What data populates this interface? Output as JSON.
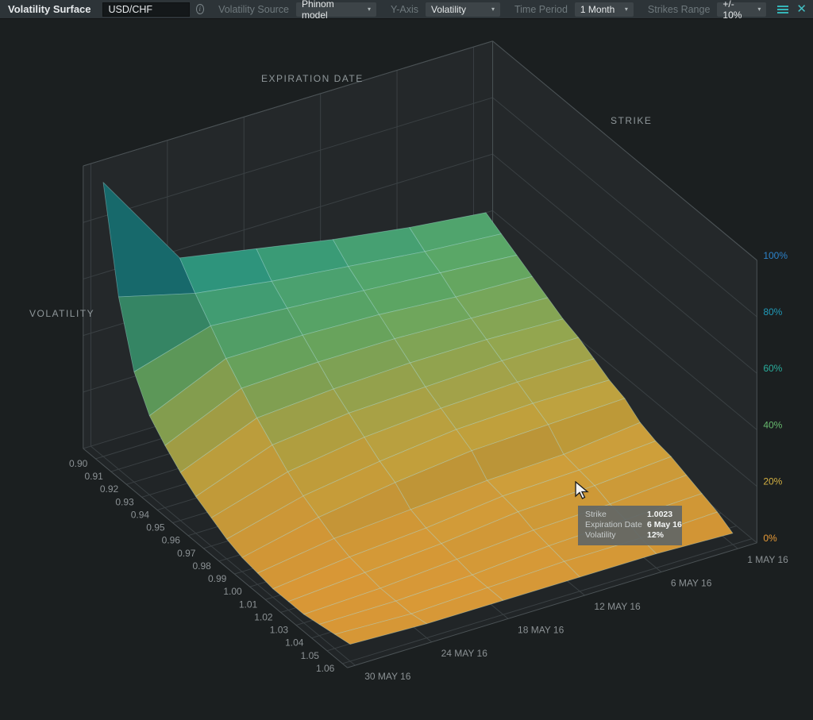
{
  "toolbar": {
    "title": "Volatility Surface",
    "pair_value": "USD/CHF",
    "info_glyph": "i",
    "caret_glyph": "▾",
    "close_glyph": "✕",
    "accent_teal": "#35b5b8",
    "fields": [
      {
        "label": "Volatility Source",
        "value": "Phinom model"
      },
      {
        "label": "Y-Axis",
        "value": "Volatility"
      },
      {
        "label": "Time Period",
        "value": "1 Month"
      },
      {
        "label": "Strikes Range",
        "value": "+/- 10%"
      }
    ]
  },
  "axes": {
    "expiration_title": "EXPIRATION DATE",
    "volatility_title": "VOLATILITY",
    "strike_title": "STRIKE"
  },
  "tooltip": {
    "rows": [
      {
        "label": "Strike",
        "value": "1.0023"
      },
      {
        "label": "Expiration Date",
        "value": "6 May 16"
      },
      {
        "label": "Volatility",
        "value": "12%"
      }
    ]
  },
  "chart_data": {
    "type": "surface",
    "title": "USD/CHF volatility surface",
    "x_axis": {
      "label": "EXPIRATION DATE",
      "tick_labels": [
        "1 MAY 16",
        "6 MAY 16",
        "12 MAY 16",
        "18 MAY 16",
        "24 MAY 16",
        "30 MAY 16"
      ]
    },
    "y_axis": {
      "label": "STRIKE",
      "tick_labels": [
        "0.90",
        "0.91",
        "0.92",
        "0.93",
        "0.94",
        "0.95",
        "0.96",
        "0.97",
        "0.98",
        "0.99",
        "1.00",
        "1.01",
        "1.02",
        "1.03",
        "1.04",
        "1.05",
        "1.06"
      ]
    },
    "z_axis": {
      "label": "VOLATILITY",
      "tick_labels": [
        "0%",
        "20%",
        "40%",
        "60%",
        "80%",
        "100%"
      ],
      "tick_values": [
        0,
        20,
        40,
        60,
        80,
        100
      ],
      "range": [
        0,
        100
      ]
    },
    "values_pct_by_strike_then_date": [
      [
        45,
        48,
        52,
        57,
        62,
        97
      ],
      [
        42,
        44,
        47,
        50,
        54,
        61
      ],
      [
        39,
        41,
        43,
        45,
        47,
        39
      ],
      [
        36,
        37,
        39,
        40,
        40,
        28
      ],
      [
        33,
        34,
        35,
        35,
        34,
        22
      ],
      [
        30,
        31,
        31,
        30,
        28,
        17
      ],
      [
        28,
        28,
        27,
        26,
        23,
        13
      ],
      [
        25,
        25,
        24,
        22,
        18,
        10
      ],
      [
        22,
        22,
        21,
        18,
        14,
        7
      ],
      [
        20,
        19,
        18,
        15,
        11,
        5
      ],
      [
        16,
        13,
        12,
        10,
        8,
        4
      ],
      [
        14,
        12,
        11,
        8,
        6,
        3
      ],
      [
        13,
        11,
        10,
        7,
        5,
        3
      ],
      [
        11,
        9,
        8,
        6,
        4,
        3
      ],
      [
        9,
        8,
        7,
        5,
        4,
        4
      ],
      [
        7,
        6,
        6,
        5,
        4,
        5
      ],
      [
        4,
        5,
        5,
        5,
        5,
        6
      ]
    ],
    "colorscale": [
      {
        "t": 0.0,
        "c": "#de9434"
      },
      {
        "t": 0.2,
        "c": "#c9a83f"
      },
      {
        "t": 0.4,
        "c": "#62b069"
      },
      {
        "t": 0.6,
        "c": "#27a595"
      },
      {
        "t": 0.8,
        "c": "#1e93af"
      },
      {
        "t": 1.0,
        "c": "#2a7cbf"
      }
    ],
    "grid": {
      "floor_fill": "#212527",
      "wall_fill": "#24282a",
      "grid_line": "#3a4043",
      "frame_line": "#4b5255",
      "tick_color": "#8b9194"
    },
    "hover_point": {
      "strike": "1.0023",
      "date": "6 May 16",
      "volatility_pct": 12
    }
  }
}
